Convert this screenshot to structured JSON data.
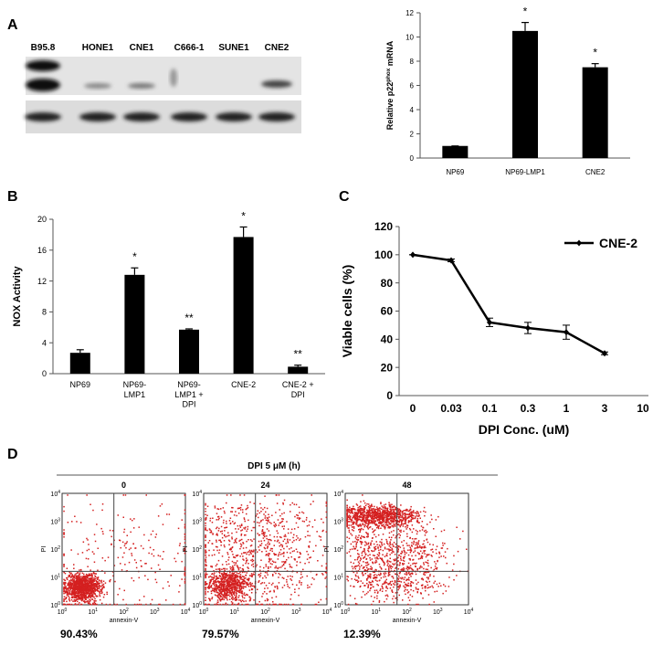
{
  "blot": {
    "lanes": [
      "B95.8",
      "HONE1",
      "CNE1",
      "C666-1",
      "SUNE1",
      "CNE2"
    ]
  },
  "chart_data": [
    {
      "type": "bar",
      "panel": "A",
      "ylabel": [
        "Relative p22",
        "phox",
        " mRNA"
      ],
      "categories": [
        "NP69",
        "NP69-LMP1",
        "CNE2"
      ],
      "values": [
        1,
        10.5,
        7.5
      ],
      "errors": [
        0,
        0.7,
        0.3
      ],
      "markers": [
        null,
        "*",
        "*"
      ],
      "color": "#000000",
      "ylim": [
        0,
        12
      ],
      "yticks": [
        0,
        2,
        4,
        6,
        8,
        10,
        12
      ]
    },
    {
      "type": "bar",
      "panel": "B",
      "ylabel": [
        "NOX Activity"
      ],
      "categories": [
        [
          "NP69"
        ],
        [
          "NP69-",
          "LMP1"
        ],
        [
          "NP69-",
          "LMP1 +",
          "DPI"
        ],
        [
          "CNE-2"
        ],
        [
          "CNE-2 +",
          "DPI"
        ]
      ],
      "values": [
        2.7,
        12.8,
        5.7,
        17.7,
        0.9
      ],
      "errors": [
        0.4,
        0.9,
        0.1,
        1.3,
        0.2
      ],
      "markers": [
        null,
        "*",
        "**",
        "*",
        "**"
      ],
      "color": "#000000",
      "ylim": [
        0,
        20
      ],
      "yticks": [
        0,
        4,
        8,
        12,
        16,
        20
      ]
    },
    {
      "type": "line",
      "panel": "C",
      "ylabel": "Viable cells (%)",
      "xlabel": "DPI Conc. (uM)",
      "categories": [
        "0",
        "0.03",
        "0.1",
        "0.3",
        "1",
        "3",
        "10"
      ],
      "series": [
        {
          "name": "CNE-2",
          "color": "#000000",
          "values": [
            100,
            96,
            52,
            48,
            45,
            30,
            null
          ],
          "errors": [
            0,
            1,
            3,
            4,
            5,
            1,
            null
          ]
        }
      ],
      "ylim": [
        0,
        120
      ],
      "yticks": [
        0,
        20,
        40,
        60,
        80,
        100,
        120
      ],
      "legend": "upper right"
    }
  ],
  "flow": {
    "panel": "D",
    "title": "DPI 5 μM (h)",
    "x_label": "annexin-V",
    "y_label": "PI",
    "tick_base": "10",
    "tick_exponents": [
      0,
      1,
      2,
      3,
      4
    ],
    "plots": [
      {
        "time": "0",
        "percent": "90.43%"
      },
      {
        "time": "24",
        "percent": "79.57%"
      },
      {
        "time": "48",
        "percent": "12.39%"
      }
    ]
  }
}
